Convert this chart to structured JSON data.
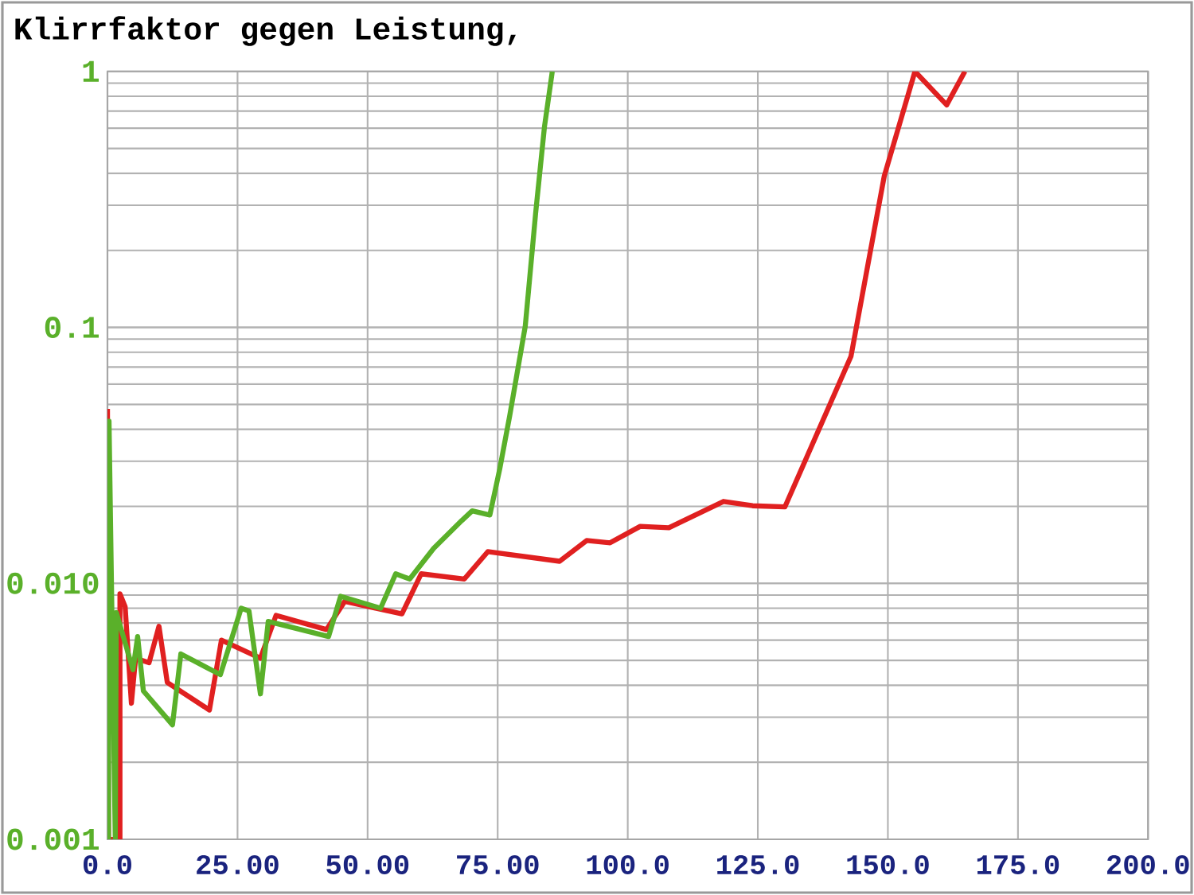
{
  "chart_data": {
    "type": "line",
    "title": "Klirrfaktor gegen Leistung,",
    "log": true,
    "grid": true,
    "xlim": [
      0,
      200
    ],
    "ylim": [
      0.001,
      1
    ],
    "xticks": [
      {
        "value": 0,
        "label": "0.0"
      },
      {
        "value": 25,
        "label": "25.00"
      },
      {
        "value": 50,
        "label": "50.00"
      },
      {
        "value": 75,
        "label": "75.00"
      },
      {
        "value": 100,
        "label": "100.0"
      },
      {
        "value": 125,
        "label": "125.0"
      },
      {
        "value": 150,
        "label": "150.0"
      },
      {
        "value": 175,
        "label": "175.0"
      },
      {
        "value": 200,
        "label": "200.0"
      }
    ],
    "yticks": [
      {
        "value": 0.001,
        "label": "0.001"
      },
      {
        "value": 0.01,
        "label": "0.010"
      },
      0.1,
      1
    ],
    "series": [
      {
        "color": "#e02020",
        "x": [
          0,
          0.2,
          2.4,
          2.4,
          3.4,
          4.6,
          5.4,
          8.0,
          9.9,
          11.5,
          19.6,
          21.9,
          29.4,
          32.4,
          42.1,
          45.6,
          56.6,
          60.3,
          68.6,
          73.1,
          86.9,
          92.1,
          96.6,
          102.4,
          107.9,
          118.4,
          124.0,
          130.2,
          142.9,
          149.3,
          155.2,
          161.3,
          164.8
        ],
        "values": [
          0.048,
          0.001,
          0.001,
          0.0091,
          0.0081,
          0.0034,
          0.0051,
          0.0049,
          0.0068,
          0.0041,
          0.0032,
          0.006,
          0.0051,
          0.0075,
          0.0066,
          0.0085,
          0.0076,
          0.0109,
          0.0104,
          0.0133,
          0.0122,
          0.0147,
          0.0144,
          0.0167,
          0.0165,
          0.0209,
          0.0201,
          0.0199,
          0.077,
          0.39,
          1,
          0.74,
          1
        ]
      },
      {
        "color": "#5ab02a",
        "x": [
          0.2,
          0.3,
          1.5,
          1.7,
          4.9,
          5.8,
          6.9,
          12.5,
          14.1,
          21.7,
          25.7,
          27.2,
          29.4,
          30.9,
          42.5,
          44.8,
          52.5,
          55.4,
          58.1,
          62.7,
          68.1,
          70.1,
          73.5,
          75.4,
          77.3,
          80.3,
          82.3,
          84.0,
          85.5
        ],
        "values": [
          0.001,
          0.043,
          0.001,
          0.0077,
          0.0046,
          0.0062,
          0.0038,
          0.0028,
          0.0053,
          0.0044,
          0.008,
          0.0078,
          0.0037,
          0.0071,
          0.0062,
          0.0089,
          0.008,
          0.0109,
          0.0104,
          0.0137,
          0.0176,
          0.0192,
          0.0185,
          0.028,
          0.045,
          0.101,
          0.28,
          0.61,
          1
        ]
      }
    ]
  }
}
